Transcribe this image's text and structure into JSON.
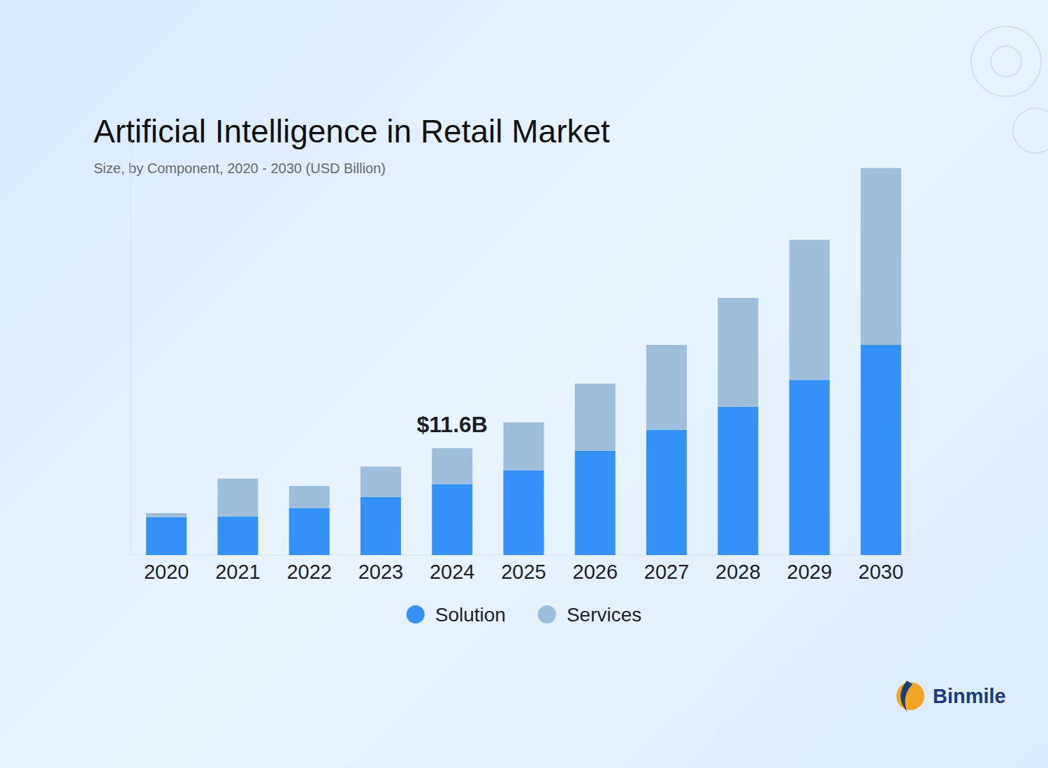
{
  "chart_data": {
    "type": "bar",
    "stacked": true,
    "title": "Artificial Intelligence in Retail Market",
    "subtitle": "Size, by Component, 2020 - 2030 (USD Billion)",
    "categories": [
      "2020",
      "2021",
      "2022",
      "2023",
      "2024",
      "2025",
      "2026",
      "2027",
      "2028",
      "2029",
      "2030"
    ],
    "series": [
      {
        "name": "Solution",
        "color": "#3391f7",
        "values": [
          4.1,
          4.2,
          5.1,
          6.3,
          7.7,
          9.2,
          11.3,
          13.6,
          16.1,
          19.0,
          22.8
        ]
      },
      {
        "name": "Services",
        "color": "#9dbfdc",
        "values": [
          0.45,
          4.1,
          2.4,
          3.3,
          3.9,
          5.2,
          7.3,
          9.2,
          11.8,
          15.2,
          19.2
        ]
      }
    ],
    "ylim": [
      0,
      45
    ],
    "grid": false,
    "tick_labels": "x",
    "legend": "bottom",
    "annotations": [
      {
        "x": "2024",
        "value": 11.6,
        "label": "$11.6B"
      }
    ],
    "brand": "Binmile"
  }
}
